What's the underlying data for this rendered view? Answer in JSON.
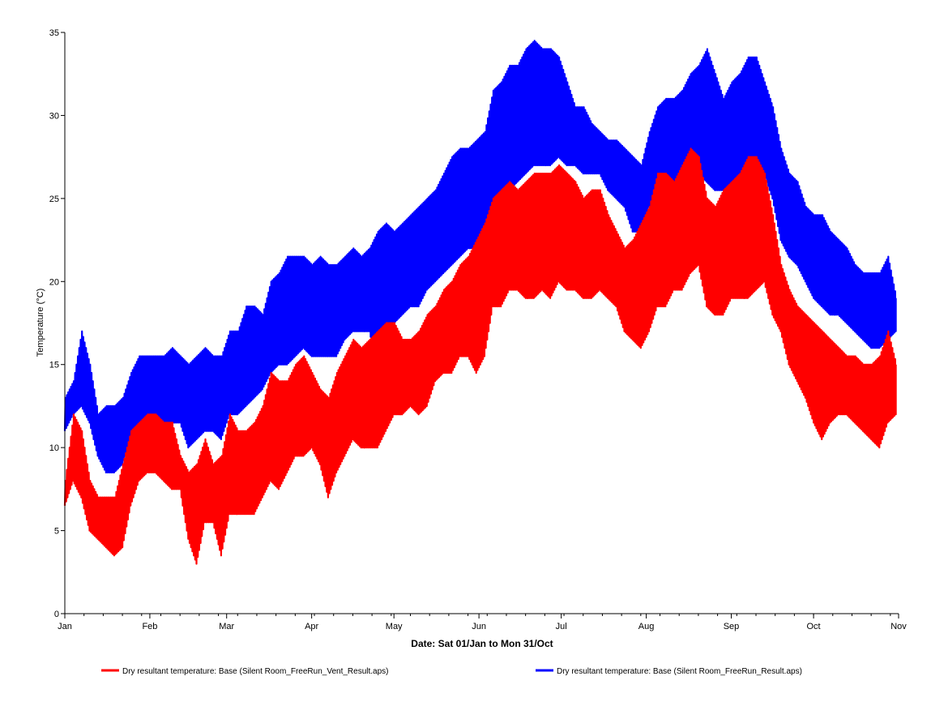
{
  "chart_data": {
    "type": "line",
    "title": "",
    "xlabel": "Date: Sat 01/Jan to Mon 31/Oct",
    "ylabel": "Temperature (°C)",
    "ylim": [
      0,
      35
    ],
    "yticks": [
      0,
      5,
      10,
      15,
      20,
      25,
      30,
      35
    ],
    "xlim": [
      0,
      304
    ],
    "xticks": [
      {
        "day": 0,
        "label": "Jan"
      },
      {
        "day": 31,
        "label": "Feb"
      },
      {
        "day": 59,
        "label": "Mar"
      },
      {
        "day": 90,
        "label": "Apr"
      },
      {
        "day": 120,
        "label": "May"
      },
      {
        "day": 151,
        "label": "Jun"
      },
      {
        "day": 181,
        "label": "Jul"
      },
      {
        "day": 212,
        "label": "Aug"
      },
      {
        "day": 243,
        "label": "Sep"
      },
      {
        "day": 273,
        "label": "Oct"
      },
      {
        "day": 304,
        "label": "Nov"
      }
    ],
    "grid": false,
    "legend_position": "bottom",
    "series": [
      {
        "name": "Dry resultant temperature: Base (Silent Room_FreeRun_Vent_Result.aps)",
        "color": "#ff0000",
        "x": [
          0,
          3,
          6,
          9,
          12,
          15,
          18,
          21,
          24,
          27,
          30,
          33,
          36,
          39,
          42,
          45,
          48,
          51,
          54,
          57,
          60,
          63,
          66,
          69,
          72,
          75,
          78,
          81,
          84,
          87,
          90,
          93,
          96,
          99,
          102,
          105,
          108,
          111,
          114,
          117,
          120,
          123,
          126,
          129,
          132,
          135,
          138,
          141,
          144,
          147,
          150,
          153,
          156,
          159,
          162,
          165,
          168,
          171,
          174,
          177,
          180,
          183,
          186,
          189,
          192,
          195,
          198,
          201,
          204,
          207,
          210,
          213,
          216,
          219,
          222,
          225,
          228,
          231,
          234,
          237,
          240,
          243,
          246,
          249,
          252,
          255,
          258,
          261,
          264,
          267,
          270,
          273,
          276,
          279,
          282,
          285,
          288,
          291,
          294,
          297,
          300,
          303
        ],
        "low": [
          6.5,
          8,
          7,
          5,
          4.5,
          4,
          3.5,
          4,
          6.5,
          8,
          8.5,
          8.5,
          8,
          7.5,
          7.5,
          4.5,
          3,
          5.5,
          5.5,
          3.5,
          6,
          6,
          6,
          6,
          7,
          8,
          7.5,
          8.5,
          9.5,
          9.5,
          10,
          9,
          7,
          8.5,
          9.5,
          10.5,
          10,
          10,
          10,
          11,
          12,
          12,
          12.5,
          12,
          12.5,
          14,
          14.5,
          14.5,
          15.5,
          15.5,
          14.5,
          15.5,
          18.5,
          18.5,
          19.5,
          19.5,
          19,
          19,
          19.5,
          19,
          20,
          19.5,
          19.5,
          19,
          19,
          19.5,
          19,
          18.5,
          17,
          16.5,
          16,
          17,
          18.5,
          18.5,
          19.5,
          19.5,
          20.5,
          21,
          18.5,
          18,
          18,
          19,
          19,
          19,
          19.5,
          20,
          18,
          17,
          15,
          14,
          13,
          11.5,
          10.5,
          11.5,
          12,
          12,
          11.5,
          11,
          10.5,
          10,
          11.5,
          12
        ],
        "high": [
          8,
          12,
          11,
          8,
          7,
          7,
          7,
          9,
          11,
          11.5,
          12,
          12,
          11.5,
          11.5,
          9.5,
          8.5,
          9,
          10.5,
          9,
          9.5,
          12,
          11,
          11,
          11.5,
          12.5,
          14.5,
          14,
          14,
          15,
          15.5,
          14.5,
          13.5,
          13,
          14.5,
          15.5,
          16.5,
          16,
          16.5,
          17,
          17.5,
          17.5,
          16.5,
          16.5,
          17,
          18,
          18.5,
          19.5,
          20,
          21,
          21.5,
          22.5,
          23.5,
          25,
          25.5,
          26,
          25.5,
          26,
          26.5,
          26.5,
          26.5,
          27,
          26.5,
          26,
          25,
          25.5,
          25.5,
          24,
          23,
          22,
          22.5,
          23.5,
          24.5,
          26.5,
          26.5,
          26,
          27,
          28,
          27.5,
          25,
          24.5,
          25.5,
          26,
          26.5,
          27.5,
          27.5,
          26.5,
          24,
          21,
          19.5,
          18.5,
          18,
          17.5,
          17,
          16.5,
          16,
          15.5,
          15.5,
          15,
          15,
          15.5,
          17,
          15
        ]
      },
      {
        "name": "Dry resultant temperature: Base (Silent Room_FreeRun_Result.aps)",
        "color": "#0000ff",
        "x": [
          0,
          3,
          6,
          9,
          12,
          15,
          18,
          21,
          24,
          27,
          30,
          33,
          36,
          39,
          42,
          45,
          48,
          51,
          54,
          57,
          60,
          63,
          66,
          69,
          72,
          75,
          78,
          81,
          84,
          87,
          90,
          93,
          96,
          99,
          102,
          105,
          108,
          111,
          114,
          117,
          120,
          123,
          126,
          129,
          132,
          135,
          138,
          141,
          144,
          147,
          150,
          153,
          156,
          159,
          162,
          165,
          168,
          171,
          174,
          177,
          180,
          183,
          186,
          189,
          192,
          195,
          198,
          201,
          204,
          207,
          210,
          213,
          216,
          219,
          222,
          225,
          228,
          231,
          234,
          237,
          240,
          243,
          246,
          249,
          252,
          255,
          258,
          261,
          264,
          267,
          270,
          273,
          276,
          279,
          282,
          285,
          288,
          291,
          294,
          297,
          300,
          303
        ],
        "low": [
          11,
          12,
          12.5,
          11.5,
          9.5,
          8.5,
          8.5,
          9,
          10.5,
          11.5,
          11.5,
          11.5,
          11.5,
          11.5,
          11.5,
          10,
          10.5,
          11,
          11,
          10.5,
          12,
          12,
          12.5,
          13,
          13.5,
          14.5,
          15,
          15,
          15.5,
          16,
          15.5,
          15.5,
          15.5,
          15.5,
          16.5,
          17,
          17,
          17,
          15,
          16.5,
          17.5,
          18,
          18.5,
          18.5,
          19.5,
          20,
          20.5,
          21,
          21.5,
          22,
          22,
          22.5,
          24,
          24.5,
          25.5,
          26,
          26.5,
          27,
          27,
          27,
          27.5,
          27,
          27,
          26.5,
          26.5,
          26.5,
          25.5,
          25,
          24.5,
          23,
          23,
          24.5,
          25,
          26,
          26,
          26,
          26.5,
          26.5,
          26,
          25.5,
          25.5,
          26,
          26.5,
          27,
          27,
          26.5,
          25,
          22.5,
          21.5,
          21,
          20,
          19,
          18.5,
          18,
          18,
          17.5,
          17,
          16.5,
          16,
          16,
          16.5,
          17
        ],
        "high": [
          13,
          14,
          17,
          15,
          12,
          12.5,
          12.5,
          13,
          14.5,
          15.5,
          15.5,
          15.5,
          15.5,
          16,
          15.5,
          15,
          15.5,
          16,
          15.5,
          15.5,
          17,
          17,
          18.5,
          18.5,
          18,
          20,
          20.5,
          21.5,
          21.5,
          21.5,
          21,
          21.5,
          21,
          21,
          21.5,
          22,
          21.5,
          22,
          23,
          23.5,
          23,
          23.5,
          24,
          24.5,
          25,
          25.5,
          26.5,
          27.5,
          28,
          28,
          28.5,
          29,
          31.5,
          32,
          33,
          33,
          34,
          34.5,
          34,
          34,
          33.5,
          32,
          30.5,
          30.5,
          29.5,
          29,
          28.5,
          28.5,
          28,
          27.5,
          27,
          29,
          30.5,
          31,
          31,
          31.5,
          32.5,
          33,
          34,
          32.5,
          31,
          32,
          32.5,
          33.5,
          33.5,
          32,
          30.5,
          28,
          26.5,
          26,
          24.5,
          24,
          24,
          23,
          22.5,
          22,
          21,
          20.5,
          20.5,
          20.5,
          21.5,
          19
        ]
      }
    ]
  }
}
